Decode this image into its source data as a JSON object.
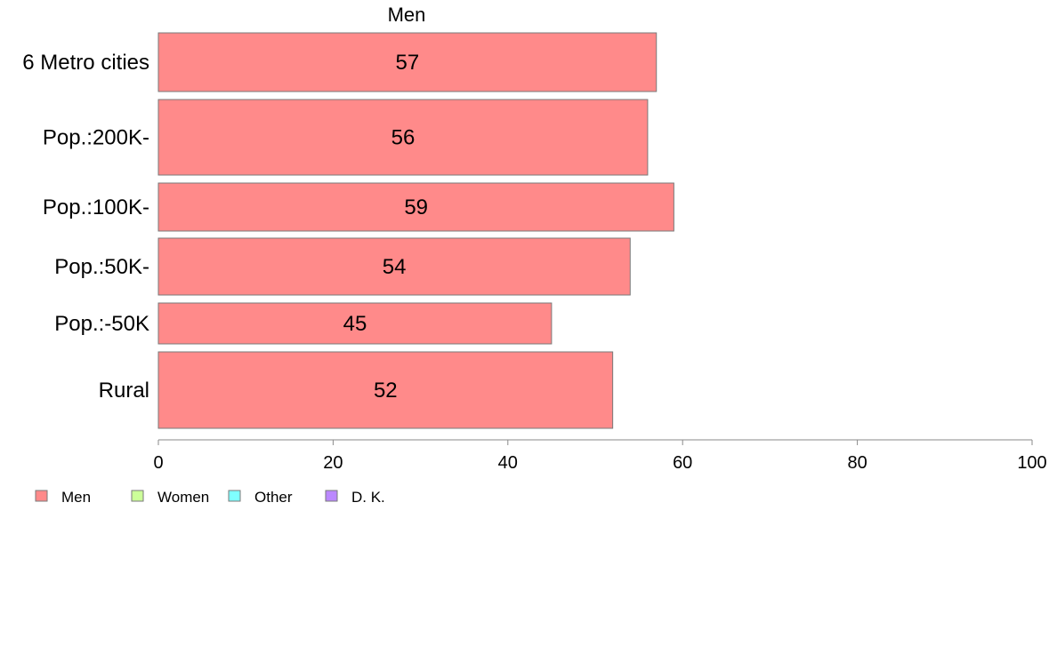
{
  "chart_data": {
    "type": "bar",
    "orientation": "horizontal",
    "title": "Men",
    "categories": [
      "6 Metro cities",
      "Pop.:200K-",
      "Pop.:100K-",
      "Pop.:50K-",
      "Pop.:-50K",
      "Rural"
    ],
    "values": [
      57,
      56,
      59,
      54,
      45,
      52
    ],
    "data_labels": [
      "57",
      "56",
      "59",
      "54",
      "45",
      "52"
    ],
    "xlim": [
      0,
      100
    ],
    "x_ticks": [
      0,
      20,
      40,
      60,
      80,
      100
    ],
    "x_tick_labels": [
      "0",
      "20",
      "40",
      "60",
      "80",
      "100"
    ],
    "grid": false,
    "legend_position": "bottom-left",
    "legend": [
      {
        "label": "Men",
        "color": "#FF8A8A"
      },
      {
        "label": "Women",
        "color": "#CCFF99"
      },
      {
        "label": "Other",
        "color": "#7FFFFF"
      },
      {
        "label": "D. K.",
        "color": "#BB88FF"
      }
    ],
    "bar_color": "#FF8A8A"
  }
}
